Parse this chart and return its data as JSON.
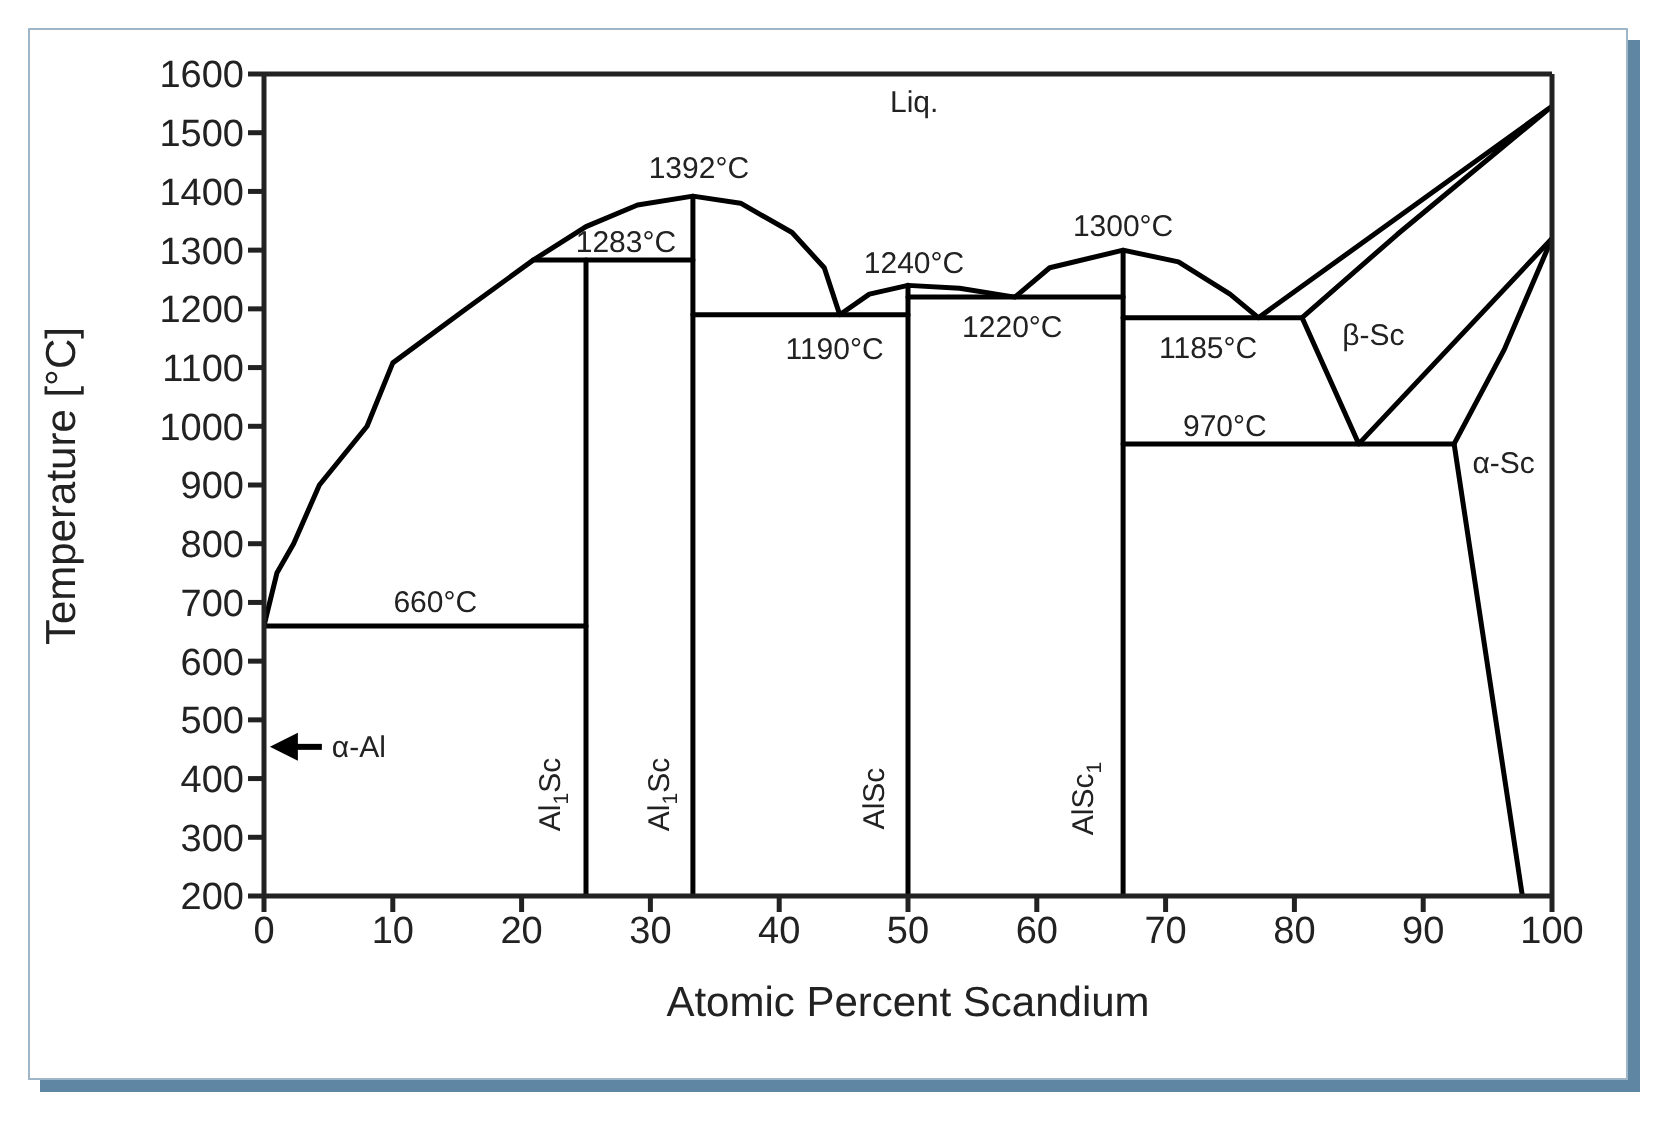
{
  "chart_data": {
    "type": "line",
    "xlabel": "Atomic Percent Scandium",
    "ylabel": "Temperature [°C]",
    "xlim": [
      0,
      100
    ],
    "xticks": [
      0,
      10,
      20,
      30,
      40,
      50,
      60,
      70,
      80,
      90,
      100
    ],
    "ylim": [
      200,
      1600
    ],
    "yticks": [
      200,
      300,
      400,
      500,
      600,
      700,
      800,
      900,
      1000,
      1100,
      1200,
      1300,
      1400,
      1500,
      1600
    ],
    "grid": false,
    "marker": "none",
    "line_style": "solid",
    "series": [
      {
        "color": "#000000",
        "x": [
          25,
          0,
          1,
          2.3,
          4.3,
          8,
          10,
          15.7,
          20.9,
          25,
          29,
          33.3,
          37,
          41,
          43.5,
          44.7,
          47,
          50,
          54,
          58.3,
          61,
          66.7,
          71,
          75,
          77.2,
          100,
          88,
          80.6,
          85,
          100
        ],
        "values": [
          660,
          660,
          750,
          800,
          900,
          1000,
          1108,
          1200,
          1283,
          1340,
          1377,
          1392,
          1380,
          1330,
          1270,
          1190,
          1225,
          1240,
          1235,
          1220,
          1270,
          1300,
          1280,
          1225,
          1185,
          1545,
          1327,
          1185,
          970,
          1320
        ]
      },
      {
        "color": "#000000",
        "x": [
          100,
          96.3,
          92.4,
          97.7
        ],
        "values": [
          1320,
          1131,
          970,
          200
        ]
      },
      {
        "color": "#000000",
        "x": [
          20.9,
          33.3
        ],
        "values": [
          1283,
          1283
        ]
      },
      {
        "color": "#000000",
        "x": [
          33.3,
          50
        ],
        "values": [
          1190,
          1190
        ]
      },
      {
        "color": "#000000",
        "x": [
          50,
          66.7
        ],
        "values": [
          1220,
          1220
        ]
      },
      {
        "color": "#000000",
        "x": [
          66.7,
          80.6
        ],
        "values": [
          1185,
          1185
        ]
      },
      {
        "color": "#000000",
        "x": [
          66.7,
          92.4
        ],
        "values": [
          970,
          970
        ]
      },
      {
        "color": "#000000",
        "x": [
          25,
          25
        ],
        "values": [
          200,
          1283
        ]
      },
      {
        "color": "#000000",
        "x": [
          33.3,
          33.3
        ],
        "values": [
          200,
          1392
        ]
      },
      {
        "color": "#000000",
        "x": [
          50,
          50
        ],
        "values": [
          200,
          1240
        ]
      },
      {
        "color": "#000000",
        "x": [
          66.7,
          66.7
        ],
        "values": [
          200,
          1300
        ]
      }
    ],
    "annotations": [
      "Liq.",
      {
        "text": "1392°C",
        "x": 33.3,
        "y": 1392
      },
      {
        "text": "1283°C",
        "x": 28.1,
        "y": 1283
      },
      {
        "text": "1190°C",
        "x": 44.3,
        "y": 1190
      },
      {
        "text": "1240°C",
        "x": 50,
        "y": 1240
      },
      {
        "text": "1220°C",
        "x": 58.1,
        "y": 1220
      },
      {
        "text": "1300°C",
        "x": 66.7,
        "y": 1300
      },
      {
        "text": "1185°C",
        "x": 73.3,
        "y": 1185
      },
      "β-Sc",
      {
        "text": "970°C",
        "x": 74.6,
        "y": 970
      },
      "α-Sc",
      {
        "text": "660°C",
        "x": 13.3,
        "y": 660
      },
      "α-Al",
      {
        "text": "Al$_{1}$Sc",
        "x": 25,
        "y": 373
      },
      {
        "text": "Al$_{1}$Sc",
        "x": 33.3,
        "y": 373
      },
      {
        "text": "AlSc",
        "x": 50,
        "y": 366
      },
      {
        "text": "AlSc$_{1}$",
        "x": 66.7,
        "y": 366
      }
    ]
  }
}
